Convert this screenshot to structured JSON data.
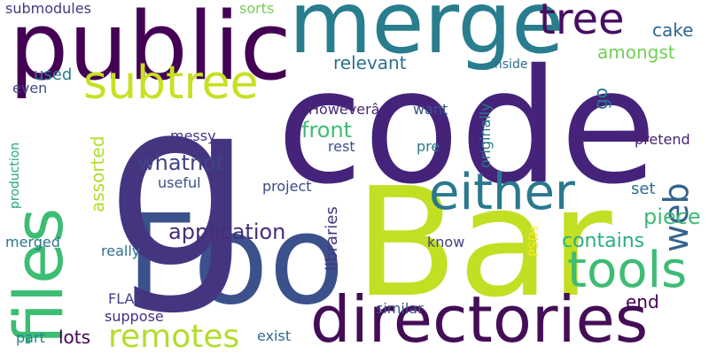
{
  "words": [
    {
      "text": "code",
      "color": "#45237a"
    },
    {
      "text": "Bar",
      "color": "#c2df23"
    },
    {
      "text": "Foo",
      "color": "#3b518b"
    },
    {
      "text": "public",
      "color": "#440154"
    },
    {
      "text": "merge",
      "color": "#287d8e"
    },
    {
      "text": "g",
      "color": "#453581"
    },
    {
      "text": "directories",
      "color": "#440e57"
    },
    {
      "text": "files",
      "color": "#3dbc74"
    },
    {
      "text": "either",
      "color": "#2a788e"
    },
    {
      "text": "tools",
      "color": "#3dbc74"
    },
    {
      "text": "subtree",
      "color": "#c8e020"
    },
    {
      "text": "tree",
      "color": "#470d60"
    },
    {
      "text": "remotes",
      "color": "#b2dd2d"
    },
    {
      "text": "web",
      "color": "#33638d"
    },
    {
      "text": "application",
      "color": "#472d7b"
    },
    {
      "text": "whatnot",
      "color": "#404387"
    },
    {
      "text": "front",
      "color": "#3dbc74"
    },
    {
      "text": "piece",
      "color": "#3dbc74"
    },
    {
      "text": "contains",
      "color": "#29af7f"
    },
    {
      "text": "relevant",
      "color": "#2d708e"
    },
    {
      "text": "amongst",
      "color": "#70cf57"
    },
    {
      "text": "cake",
      "color": "#31688e"
    },
    {
      "text": "go",
      "color": "#2a768e"
    },
    {
      "text": "used",
      "color": "#287d8e"
    },
    {
      "text": "assorted",
      "color": "#b2dd2d"
    },
    {
      "text": "libraries",
      "color": "#46337e"
    },
    {
      "text": "originally",
      "color": "#2a788e"
    },
    {
      "text": "lots",
      "color": "#440154"
    },
    {
      "text": "end",
      "color": "#440154"
    },
    {
      "text": "set",
      "color": "#2c718e"
    },
    {
      "text": "want",
      "color": "#39568c"
    },
    {
      "text": "pretend",
      "color": "#481f70"
    },
    {
      "text": "messy",
      "color": "#46337e"
    },
    {
      "text": "rest",
      "color": "#3b518b"
    },
    {
      "text": "pre",
      "color": "#2a788e"
    },
    {
      "text": "Howeverâ",
      "color": "#482878"
    },
    {
      "text": "project",
      "color": "#3e4989"
    },
    {
      "text": "useful",
      "color": "#3b518b"
    },
    {
      "text": "inside",
      "color": "#2f6c8e"
    },
    {
      "text": "submodules",
      "color": "#453781"
    },
    {
      "text": "sorts",
      "color": "#75d054"
    },
    {
      "text": "even",
      "color": "#404688"
    },
    {
      "text": "production",
      "color": "#20a486"
    },
    {
      "text": "merged",
      "color": "#2c738e"
    },
    {
      "text": "really",
      "color": "#2d708e"
    },
    {
      "text": "FLAs",
      "color": "#423f85"
    },
    {
      "text": "suppose",
      "color": "#46307e"
    },
    {
      "text": "part",
      "color": "#27808e"
    },
    {
      "text": "exist",
      "color": "#31688e"
    },
    {
      "text": "know",
      "color": "#414487"
    },
    {
      "text": "similar",
      "color": "#3b528b"
    },
    {
      "text": "PSDs",
      "color": "#fde725"
    }
  ]
}
